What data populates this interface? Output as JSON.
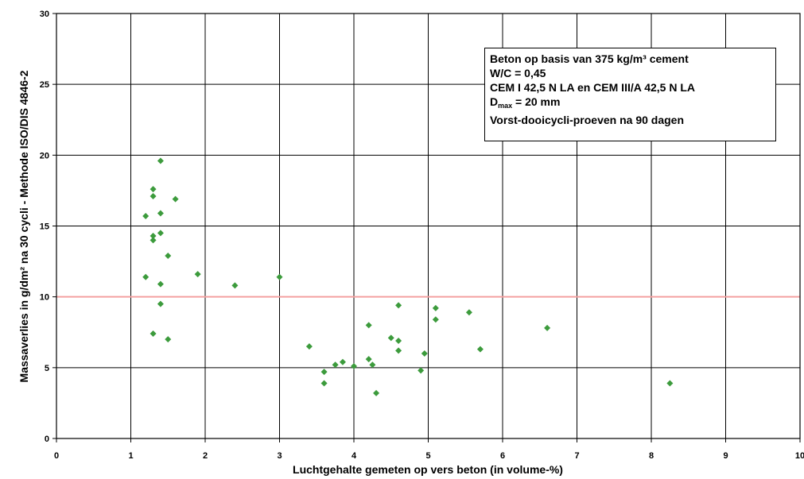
{
  "chart_data": {
    "type": "scatter",
    "xlabel": "Luchtgehalte gemeten op vers beton (in volume-%)",
    "ylabel": "Massaverlies in g/dm² na 30 cycli - Methode ISO/DIS 4846-2",
    "xlim": [
      0,
      10
    ],
    "ylim": [
      0,
      30
    ],
    "x_ticks": [
      "0",
      "1",
      "2",
      "3",
      "4",
      "5",
      "6",
      "7",
      "8",
      "9",
      "10"
    ],
    "y_ticks": [
      "0",
      "5",
      "10",
      "15",
      "20",
      "25",
      "30"
    ],
    "grid": true,
    "reference_line": {
      "y": 10,
      "color": "#f4a0a0"
    },
    "marker_color": "#3c9b3c",
    "annotation": {
      "line1": "Beton op basis van 375 kg/m³ cement",
      "line2": "W/C = 0,45",
      "line3": "CEM I 42,5 N LA en CEM III/A 42,5 N LA",
      "line4_prefix": "D",
      "line4_sub": "max",
      "line4_suffix": " = 20 mm",
      "line5": "Vorst-dooicycli-proeven na 90 dagen"
    },
    "points": [
      {
        "x": 1.4,
        "y": 19.6
      },
      {
        "x": 1.3,
        "y": 17.6
      },
      {
        "x": 1.3,
        "y": 17.1
      },
      {
        "x": 1.6,
        "y": 16.9
      },
      {
        "x": 1.4,
        "y": 15.9
      },
      {
        "x": 1.2,
        "y": 15.7
      },
      {
        "x": 1.4,
        "y": 14.5
      },
      {
        "x": 1.3,
        "y": 14.3
      },
      {
        "x": 1.3,
        "y": 14.0
      },
      {
        "x": 1.5,
        "y": 12.9
      },
      {
        "x": 1.9,
        "y": 11.6
      },
      {
        "x": 1.2,
        "y": 11.4
      },
      {
        "x": 3.0,
        "y": 11.4
      },
      {
        "x": 1.4,
        "y": 10.9
      },
      {
        "x": 2.4,
        "y": 10.8
      },
      {
        "x": 1.4,
        "y": 9.5
      },
      {
        "x": 1.3,
        "y": 7.4
      },
      {
        "x": 1.5,
        "y": 7.0
      },
      {
        "x": 3.4,
        "y": 6.5
      },
      {
        "x": 3.6,
        "y": 4.7
      },
      {
        "x": 3.6,
        "y": 3.9
      },
      {
        "x": 3.75,
        "y": 5.2
      },
      {
        "x": 3.85,
        "y": 5.4
      },
      {
        "x": 4.0,
        "y": 5.1
      },
      {
        "x": 4.2,
        "y": 8.0
      },
      {
        "x": 4.2,
        "y": 5.6
      },
      {
        "x": 4.25,
        "y": 5.2
      },
      {
        "x": 4.3,
        "y": 3.2
      },
      {
        "x": 4.5,
        "y": 7.1
      },
      {
        "x": 4.6,
        "y": 9.4
      },
      {
        "x": 4.6,
        "y": 6.9
      },
      {
        "x": 4.6,
        "y": 6.2
      },
      {
        "x": 4.9,
        "y": 4.8
      },
      {
        "x": 4.95,
        "y": 6.0
      },
      {
        "x": 5.1,
        "y": 9.2
      },
      {
        "x": 5.1,
        "y": 8.4
      },
      {
        "x": 5.55,
        "y": 8.9
      },
      {
        "x": 5.7,
        "y": 6.3
      },
      {
        "x": 6.6,
        "y": 7.8
      },
      {
        "x": 8.25,
        "y": 3.9
      }
    ]
  }
}
